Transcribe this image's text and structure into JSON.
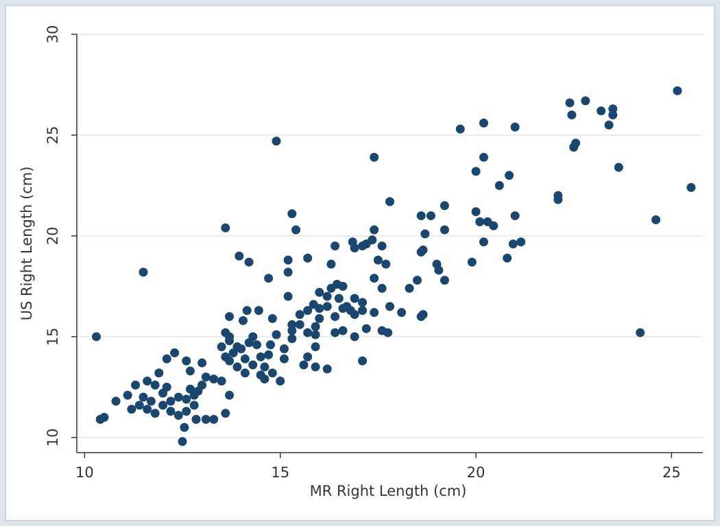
{
  "chart_data": {
    "type": "scatter",
    "x_label": "MR Right Length (cm)",
    "y_label": "US Right Length (cm)",
    "color": "#1a476f",
    "grid": true,
    "xlim": [
      9.8,
      25.8
    ],
    "ylim": [
      9.25,
      30
    ],
    "xticks": [
      10,
      15,
      20,
      25
    ],
    "yticks": [
      10,
      15,
      20,
      25,
      30
    ],
    "x": [
      10.3,
      11.5,
      14.9,
      13.6,
      17.4,
      24.2,
      19.6,
      20.2,
      21.0,
      22.4,
      22.8,
      23.2,
      23.5,
      23.5,
      23.4,
      22.45,
      22.5,
      22.55,
      25.15,
      25.5,
      23.65,
      24.6,
      22.1,
      22.1,
      20.0,
      20.2,
      20.85,
      20.6,
      20.0,
      20.1,
      20.3,
      20.2,
      20.45,
      21.0,
      20.95,
      21.15,
      20.8,
      19.9,
      19.2,
      19.2,
      18.85,
      18.6,
      18.7,
      19.0,
      19.05,
      19.2,
      18.6,
      18.65,
      18.6,
      18.65,
      18.5,
      18.3,
      17.8,
      17.2,
      17.1,
      17.35,
      16.85,
      16.9,
      17.6,
      17.4,
      17.5,
      17.7,
      17.4,
      17.6,
      17.8,
      18.1,
      17.6,
      17.75,
      17.1,
      17.1,
      16.3,
      16.4,
      15.3,
      15.4,
      15.2,
      15.2,
      14.7,
      14.2,
      13.95,
      15.7,
      13.7,
      14.05,
      14.15,
      14.45,
      14.8,
      15.2,
      15.5,
      15.7,
      15.85,
      16.0,
      16.2,
      16.3,
      16.45,
      16.6,
      16.5,
      16.7,
      16.9,
      17.1,
      16.8,
      16.6,
      16.4,
      16.2,
      16.0,
      15.9,
      15.7,
      15.5,
      15.3,
      15.3,
      15.1,
      15.9,
      16.4,
      16.6,
      16.9,
      17.2,
      15.9,
      15.7,
      15.6,
      15.9,
      16.2,
      15.1,
      15.0,
      14.8,
      14.6,
      14.5,
      14.4,
      14.2,
      14.0,
      13.8,
      13.6,
      13.5,
      13.6,
      13.7,
      13.7,
      13.9,
      14.1,
      14.3,
      14.5,
      14.7,
      14.9,
      14.3,
      14.1,
      13.9,
      13.7,
      13.6,
      13.7,
      13.3,
      13.5,
      13.1,
      13.0,
      12.9,
      12.8,
      12.7,
      13.0,
      12.6,
      12.7,
      12.3,
      12.1,
      11.9,
      11.6,
      11.8,
      12.0,
      12.2,
      12.4,
      12.6,
      12.8,
      12.6,
      12.4,
      12.2,
      12.0,
      11.8,
      11.6,
      11.4,
      11.2,
      11.1,
      11.3,
      11.5,
      11.7,
      10.8,
      10.4,
      10.5,
      12.55,
      12.5,
      12.85,
      13.1,
      13.3,
      12.1,
      14.6,
      14.75,
      15.3,
      16.0,
      16.9,
      17.4
    ],
    "values": [
      15.0,
      18.2,
      24.7,
      20.4,
      23.9,
      15.2,
      25.3,
      25.6,
      25.4,
      26.6,
      26.7,
      26.2,
      26.3,
      26.0,
      25.5,
      26.0,
      24.4,
      24.6,
      27.2,
      22.4,
      23.4,
      20.8,
      22.0,
      21.8,
      23.2,
      23.9,
      23.0,
      22.5,
      21.2,
      20.7,
      20.7,
      19.7,
      20.5,
      21.0,
      19.6,
      19.7,
      18.9,
      18.7,
      21.5,
      20.3,
      21.0,
      21.0,
      20.1,
      18.6,
      18.3,
      17.8,
      19.2,
      19.3,
      16.0,
      16.1,
      17.8,
      17.4,
      21.7,
      19.6,
      19.5,
      19.8,
      19.7,
      19.4,
      19.5,
      20.3,
      18.8,
      18.6,
      17.9,
      17.4,
      16.5,
      16.2,
      15.3,
      15.2,
      13.8,
      16.7,
      18.6,
      19.5,
      21.1,
      20.3,
      18.8,
      18.2,
      17.9,
      18.7,
      19.0,
      18.9,
      16.0,
      15.8,
      16.3,
      16.3,
      15.9,
      17.0,
      16.1,
      16.3,
      16.6,
      17.2,
      17.0,
      17.4,
      17.6,
      17.5,
      16.9,
      16.5,
      16.1,
      16.3,
      16.3,
      16.4,
      16.0,
      16.5,
      15.9,
      15.5,
      15.2,
      15.6,
      15.3,
      14.9,
      14.4,
      15.1,
      15.2,
      15.3,
      15.0,
      15.4,
      14.5,
      14.0,
      13.6,
      13.5,
      13.4,
      13.9,
      12.8,
      13.2,
      13.5,
      14.0,
      14.6,
      14.7,
      14.4,
      14.2,
      14.0,
      14.5,
      15.2,
      15.0,
      14.8,
      14.5,
      13.9,
      13.6,
      13.1,
      14.1,
      15.1,
      15.0,
      13.2,
      13.5,
      13.8,
      11.2,
      12.1,
      12.9,
      12.8,
      13.0,
      12.6,
      12.3,
      12.1,
      12.4,
      13.7,
      13.8,
      13.3,
      14.2,
      13.9,
      13.2,
      12.8,
      12.6,
      12.2,
      11.8,
      12.0,
      11.9,
      11.6,
      11.3,
      11.1,
      11.3,
      11.6,
      11.2,
      11.4,
      11.6,
      11.4,
      12.1,
      12.6,
      12.0,
      11.8,
      11.8,
      10.9,
      11.0,
      10.5,
      9.8,
      10.9,
      10.9,
      10.9,
      12.5,
      12.9,
      14.6,
      15.6,
      16.4,
      16.9,
      16.2
    ]
  }
}
